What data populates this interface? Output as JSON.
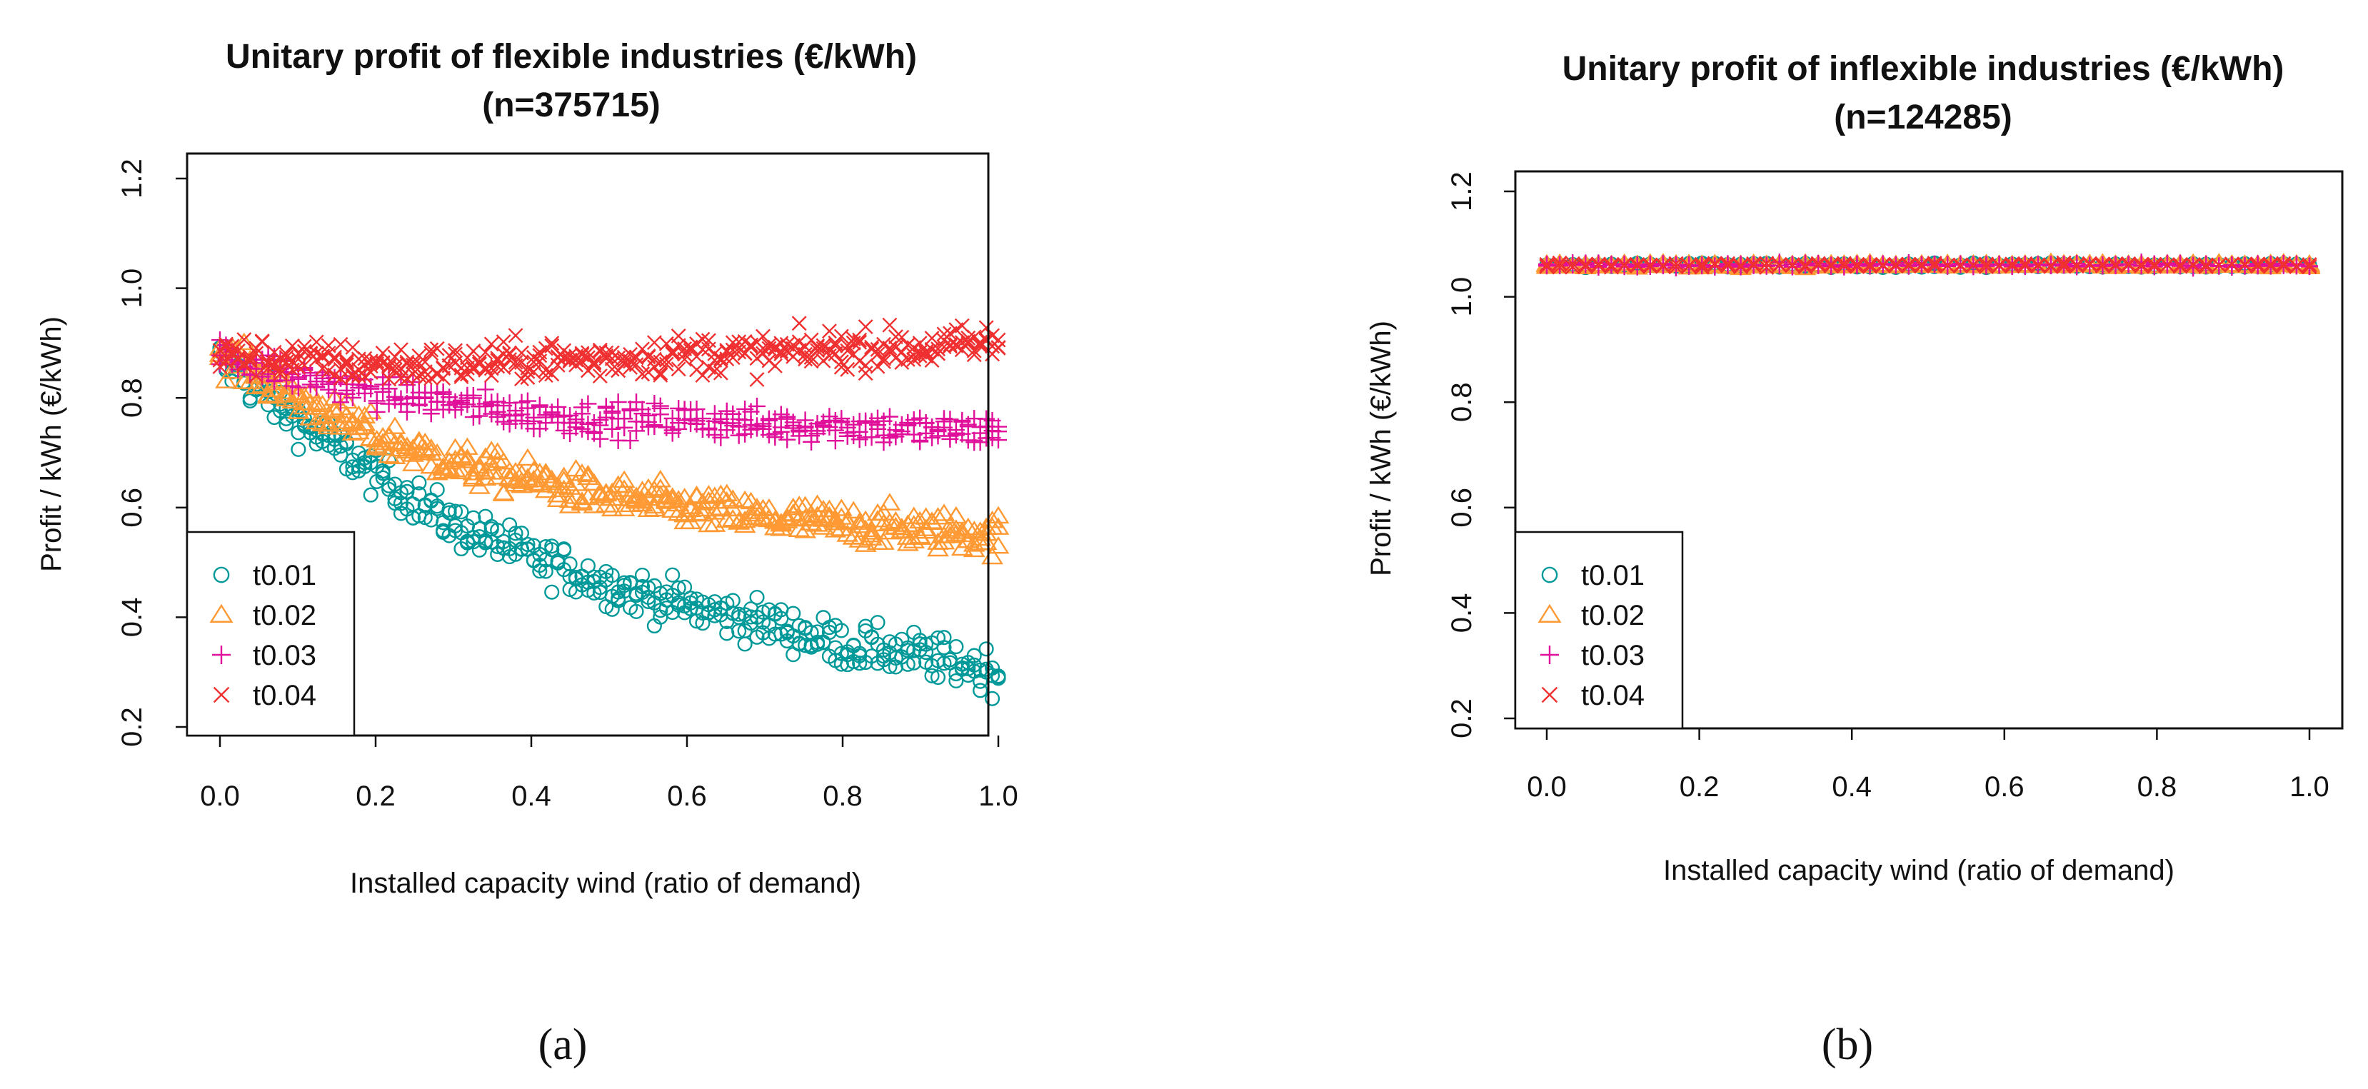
{
  "figure": {
    "panel_labels": [
      "(a)",
      "(b)"
    ]
  },
  "chart_data": [
    {
      "type": "scatter",
      "panel": "(a)",
      "title": "Unitary profit of flexible industries  (€/kWh)",
      "subtitle": "(n=375715)",
      "xlabel": "Installed capacity wind (ratio of demand)",
      "ylabel": "Profit / kWh (€/kWh)",
      "xlim": [
        0.0,
        1.0
      ],
      "ylim": [
        0.2,
        1.2
      ],
      "xticks": [
        "0.0",
        "0.2",
        "0.4",
        "0.6",
        "0.8",
        "1.0"
      ],
      "yticks": [
        "0.2",
        "0.4",
        "0.6",
        "0.8",
        "1.0",
        "1.2"
      ],
      "legend_position": "bottom-left",
      "series": [
        {
          "name": "t0.01",
          "marker": "circle",
          "color": "#009999",
          "x": [
            0.0,
            0.1,
            0.2,
            0.3,
            0.4,
            0.5,
            0.6,
            0.7,
            0.8,
            0.9,
            1.0
          ],
          "y": [
            0.87,
            0.76,
            0.66,
            0.57,
            0.51,
            0.46,
            0.42,
            0.39,
            0.35,
            0.33,
            0.3
          ]
        },
        {
          "name": "t0.02",
          "marker": "triangle",
          "color": "#FF9933",
          "x": [
            0.0,
            0.1,
            0.2,
            0.3,
            0.4,
            0.5,
            0.6,
            0.7,
            0.8,
            0.9,
            1.0
          ],
          "y": [
            0.88,
            0.8,
            0.73,
            0.68,
            0.65,
            0.62,
            0.6,
            0.58,
            0.57,
            0.56,
            0.55
          ]
        },
        {
          "name": "t0.03",
          "marker": "plus",
          "color": "#E0109A",
          "x": [
            0.0,
            0.1,
            0.2,
            0.3,
            0.4,
            0.5,
            0.6,
            0.7,
            0.8,
            0.9,
            1.0
          ],
          "y": [
            0.88,
            0.84,
            0.81,
            0.79,
            0.77,
            0.76,
            0.76,
            0.75,
            0.75,
            0.74,
            0.74
          ]
        },
        {
          "name": "t0.04",
          "marker": "cross",
          "color": "#F03030",
          "x": [
            0.0,
            0.1,
            0.2,
            0.3,
            0.4,
            0.5,
            0.6,
            0.7,
            0.8,
            0.9,
            1.0
          ],
          "y": [
            0.88,
            0.87,
            0.86,
            0.86,
            0.87,
            0.87,
            0.88,
            0.88,
            0.89,
            0.89,
            0.9
          ]
        }
      ]
    },
    {
      "type": "scatter",
      "panel": "(b)",
      "title": "Unitary profit of inflexible industries (€/kWh)",
      "subtitle": "(n=124285)",
      "xlabel": "Installed capacity wind (ratio of demand)",
      "ylabel": "Profit / kWh (€/kWh)",
      "xlim": [
        0.0,
        1.0
      ],
      "ylim": [
        0.2,
        1.2
      ],
      "xticks": [
        "0.0",
        "0.2",
        "0.4",
        "0.6",
        "0.8",
        "1.0"
      ],
      "yticks": [
        "0.2",
        "0.4",
        "0.6",
        "0.8",
        "1.0",
        "1.2"
      ],
      "legend_position": "bottom-left",
      "series": [
        {
          "name": "t0.01",
          "marker": "circle",
          "color": "#009999",
          "x": [
            0.0,
            1.0
          ],
          "y": [
            1.06,
            1.06
          ]
        },
        {
          "name": "t0.02",
          "marker": "triangle",
          "color": "#FF9933",
          "x": [
            0.0,
            1.0
          ],
          "y": [
            1.06,
            1.06
          ]
        },
        {
          "name": "t0.03",
          "marker": "plus",
          "color": "#E0109A",
          "x": [
            0.0,
            1.0
          ],
          "y": [
            1.06,
            1.06
          ]
        },
        {
          "name": "t0.04",
          "marker": "cross",
          "color": "#F03030",
          "x": [
            0.0,
            1.0
          ],
          "y": [
            1.06,
            1.06
          ]
        }
      ]
    }
  ]
}
